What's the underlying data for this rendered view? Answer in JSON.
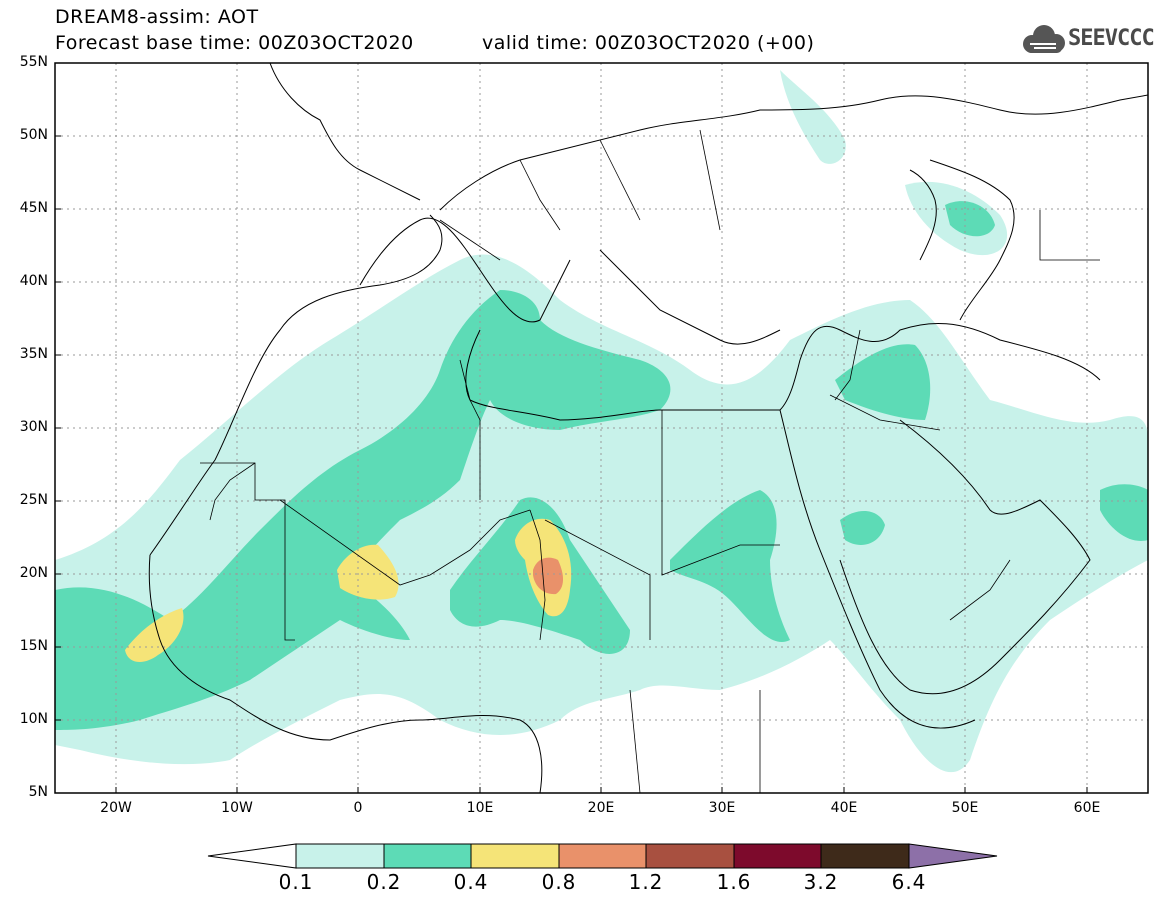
{
  "header": {
    "model_title": "DREAM8-assim: AOT",
    "base_time": "Forecast base time: 00Z03OCT2020",
    "valid_time": "valid time: 00Z03OCT2020 (+00)",
    "logo_text": "SEEVCCC"
  },
  "map": {
    "lat_labels": [
      "55N",
      "50N",
      "45N",
      "40N",
      "35N",
      "30N",
      "25N",
      "20N",
      "15N",
      "10N",
      "5N"
    ],
    "lon_labels": [
      "20W",
      "10W",
      "0",
      "10E",
      "20E",
      "30E",
      "40E",
      "50E",
      "60E"
    ],
    "lat_range": [
      5,
      55
    ],
    "lon_range": [
      -25,
      65
    ],
    "gridlines": true
  },
  "colorbar": {
    "labels": [
      "0.1",
      "0.2",
      "0.4",
      "0.8",
      "1.2",
      "1.6",
      "3.2",
      "6.4"
    ],
    "colors": [
      "#ffffff",
      "#c8f2ea",
      "#5ddbb6",
      "#f5e478",
      "#e9916a",
      "#a85040",
      "#7d0a2c",
      "#3e2a1a",
      "#8d70a8"
    ]
  }
}
